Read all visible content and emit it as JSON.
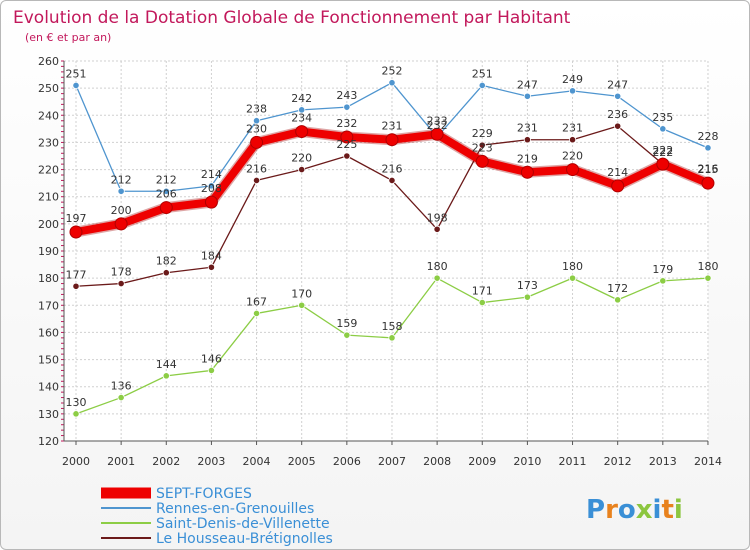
{
  "header": {
    "title": "Evolution de la Dotation Globale de Fonctionnement par Habitant",
    "subtitle": "(en € et par an)"
  },
  "logo": {
    "text": "Proxiti"
  },
  "chart_data": {
    "type": "line",
    "x": [
      "2000",
      "2001",
      "2002",
      "2003",
      "2004",
      "2005",
      "2006",
      "2007",
      "2008",
      "2009",
      "2010",
      "2011",
      "2012",
      "2013",
      "2014"
    ],
    "ylim": [
      120,
      260
    ],
    "yticks": [
      120,
      130,
      140,
      150,
      160,
      170,
      180,
      190,
      200,
      210,
      220,
      230,
      240,
      250,
      260
    ],
    "grid": true,
    "legend_position": "bottom-left",
    "series": [
      {
        "name": "Rennes-en-Grenouilles",
        "color": "#4f95cf",
        "values": [
          251,
          212,
          212,
          214,
          238,
          242,
          243,
          252,
          232,
          251,
          247,
          249,
          247,
          235,
          228
        ]
      },
      {
        "name": "Saint-Denis-de-Villenette",
        "color": "#8ccd45",
        "values": [
          130,
          136,
          144,
          146,
          167,
          170,
          159,
          158,
          180,
          171,
          173,
          180,
          172,
          179,
          180
        ]
      },
      {
        "name": "Le Housseau-Brétignolles",
        "color": "#6b1a1a",
        "values": [
          177,
          178,
          182,
          184,
          216,
          220,
          225,
          216,
          198,
          229,
          231,
          231,
          236,
          222,
          216
        ]
      },
      {
        "name": "SEPT-FORGES",
        "color": "#ee0000",
        "values": [
          197,
          200,
          206,
          208,
          230,
          234,
          232,
          231,
          233,
          223,
          219,
          220,
          214,
          222,
          215
        ]
      }
    ]
  }
}
